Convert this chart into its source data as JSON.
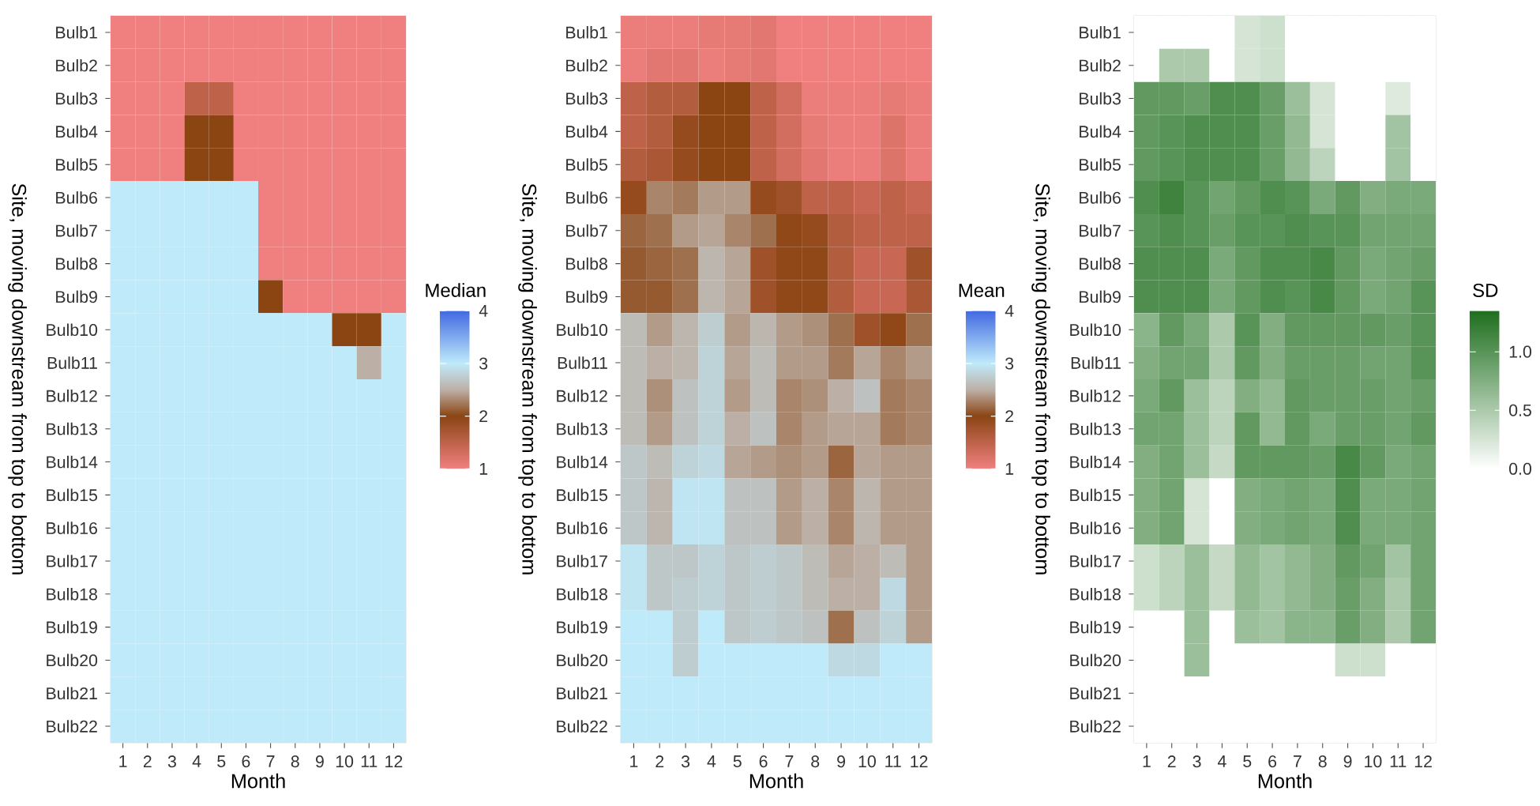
{
  "chart_data": [
    {
      "type": "heatmap",
      "xlabel": "Month",
      "ylabel": "Site, moving downstream from top to bottom",
      "clabel": "Median",
      "categories": [
        "1",
        "2",
        "3",
        "4",
        "5",
        "6",
        "7",
        "8",
        "9",
        "10",
        "11",
        "12"
      ],
      "y_categories": [
        "Bulb1",
        "Bulb2",
        "Bulb3",
        "Bulb4",
        "Bulb5",
        "Bulb6",
        "Bulb7",
        "Bulb8",
        "Bulb9",
        "Bulb10",
        "Bulb11",
        "Bulb12",
        "Bulb13",
        "Bulb14",
        "Bulb15",
        "Bulb16",
        "Bulb17",
        "Bulb18",
        "Bulb19",
        "Bulb20",
        "Bulb21",
        "Bulb22"
      ],
      "clim": [
        1,
        4
      ],
      "cticks": [
        1,
        2,
        3,
        4
      ],
      "cells": [
        [
          1,
          1,
          1,
          1,
          1,
          1,
          1,
          1,
          1,
          1,
          1,
          1
        ],
        [
          1,
          1,
          1,
          1,
          1,
          1,
          1,
          1,
          1,
          1,
          1,
          1
        ],
        [
          1,
          1,
          1,
          1.5,
          1.5,
          1,
          1,
          1,
          1,
          1,
          1,
          1
        ],
        [
          1,
          1,
          1,
          2,
          2,
          1,
          1,
          1,
          1,
          1,
          1,
          1
        ],
        [
          1,
          1,
          1,
          2,
          2,
          1,
          1,
          1,
          1,
          1,
          1,
          1
        ],
        [
          3,
          3,
          3,
          3,
          3,
          3,
          1,
          1,
          1,
          1,
          1,
          1
        ],
        [
          3,
          3,
          3,
          3,
          3,
          3,
          1,
          1,
          1,
          1,
          1,
          1
        ],
        [
          3,
          3,
          3,
          3,
          3,
          3,
          1,
          1,
          1,
          1,
          1,
          1
        ],
        [
          3,
          3,
          3,
          3,
          3,
          3,
          2,
          1,
          1,
          1,
          1,
          1
        ],
        [
          3,
          3,
          3,
          3,
          3,
          3,
          3,
          3,
          3,
          2,
          2,
          3
        ],
        [
          3,
          3,
          3,
          3,
          3,
          3,
          3,
          3,
          3,
          3,
          2.5,
          3
        ],
        [
          3,
          3,
          3,
          3,
          3,
          3,
          3,
          3,
          3,
          3,
          3,
          3
        ],
        [
          3,
          3,
          3,
          3,
          3,
          3,
          3,
          3,
          3,
          3,
          3,
          3
        ],
        [
          3,
          3,
          3,
          3,
          3,
          3,
          3,
          3,
          3,
          3,
          3,
          3
        ],
        [
          3,
          3,
          3,
          3,
          3,
          3,
          3,
          3,
          3,
          3,
          3,
          3
        ],
        [
          3,
          3,
          3,
          3,
          3,
          3,
          3,
          3,
          3,
          3,
          3,
          3
        ],
        [
          3,
          3,
          3,
          3,
          3,
          3,
          3,
          3,
          3,
          3,
          3,
          3
        ],
        [
          3,
          3,
          3,
          3,
          3,
          3,
          3,
          3,
          3,
          3,
          3,
          3
        ],
        [
          3,
          3,
          3,
          3,
          3,
          3,
          3,
          3,
          3,
          3,
          3,
          3
        ],
        [
          3,
          3,
          3,
          3,
          3,
          3,
          3,
          3,
          3,
          3,
          3,
          3
        ],
        [
          3,
          3,
          3,
          3,
          3,
          3,
          3,
          3,
          3,
          3,
          3,
          3
        ],
        [
          3,
          3,
          3,
          3,
          3,
          3,
          3,
          3,
          3,
          3,
          3,
          3
        ]
      ]
    },
    {
      "type": "heatmap",
      "xlabel": "Month",
      "ylabel": "Site, moving downstream from top to bottom",
      "clabel": "Mean",
      "categories": [
        "1",
        "2",
        "3",
        "4",
        "5",
        "6",
        "7",
        "8",
        "9",
        "10",
        "11",
        "12"
      ],
      "y_categories": [
        "Bulb1",
        "Bulb2",
        "Bulb3",
        "Bulb4",
        "Bulb5",
        "Bulb6",
        "Bulb7",
        "Bulb8",
        "Bulb9",
        "Bulb10",
        "Bulb11",
        "Bulb12",
        "Bulb13",
        "Bulb14",
        "Bulb15",
        "Bulb16",
        "Bulb17",
        "Bulb18",
        "Bulb19",
        "Bulb20",
        "Bulb21",
        "Bulb22"
      ],
      "clim": [
        1,
        4
      ],
      "cticks": [
        1,
        2,
        3,
        4
      ],
      "cells": [
        [
          1.05,
          1.05,
          1.05,
          1.1,
          1.1,
          1.15,
          1.0,
          1.0,
          1.0,
          1.0,
          1.0,
          1.0
        ],
        [
          1.05,
          1.15,
          1.15,
          1.05,
          1.1,
          1.15,
          1.0,
          1.0,
          1.0,
          1.0,
          1.0,
          1.0
        ],
        [
          1.5,
          1.6,
          1.6,
          2.0,
          2.0,
          1.5,
          1.3,
          1.05,
          1.05,
          1.05,
          1.1,
          1.05
        ],
        [
          1.5,
          1.6,
          1.9,
          2.0,
          2.0,
          1.5,
          1.3,
          1.1,
          1.05,
          1.05,
          1.2,
          1.05
        ],
        [
          1.6,
          1.7,
          1.9,
          2.0,
          2.0,
          1.5,
          1.3,
          1.15,
          1.05,
          1.05,
          1.2,
          1.05
        ],
        [
          1.9,
          2.3,
          2.25,
          2.4,
          2.4,
          1.9,
          1.8,
          1.5,
          1.5,
          1.4,
          1.5,
          1.4
        ],
        [
          2.15,
          2.2,
          2.4,
          2.45,
          2.3,
          2.2,
          1.95,
          1.9,
          1.6,
          1.5,
          1.5,
          1.5
        ],
        [
          2.1,
          2.15,
          2.2,
          2.55,
          2.45,
          1.8,
          1.95,
          1.95,
          1.6,
          1.4,
          1.4,
          1.8
        ],
        [
          2.1,
          2.1,
          2.2,
          2.55,
          2.45,
          1.8,
          1.95,
          1.95,
          1.6,
          1.4,
          1.4,
          1.7
        ],
        [
          2.6,
          2.4,
          2.55,
          2.75,
          2.4,
          2.55,
          2.4,
          2.35,
          2.2,
          1.8,
          1.95,
          2.2
        ],
        [
          2.6,
          2.5,
          2.55,
          2.8,
          2.45,
          2.6,
          2.4,
          2.4,
          2.25,
          2.45,
          2.3,
          2.4
        ],
        [
          2.6,
          2.35,
          2.65,
          2.8,
          2.4,
          2.6,
          2.3,
          2.35,
          2.5,
          2.65,
          2.25,
          2.3
        ],
        [
          2.6,
          2.4,
          2.65,
          2.8,
          2.5,
          2.65,
          2.3,
          2.4,
          2.45,
          2.45,
          2.25,
          2.3
        ],
        [
          2.7,
          2.6,
          2.8,
          2.85,
          2.45,
          2.4,
          2.35,
          2.4,
          2.15,
          2.45,
          2.4,
          2.4
        ],
        [
          2.7,
          2.55,
          2.95,
          2.95,
          2.65,
          2.65,
          2.4,
          2.5,
          2.3,
          2.55,
          2.4,
          2.4
        ],
        [
          2.7,
          2.55,
          2.95,
          2.95,
          2.65,
          2.65,
          2.4,
          2.5,
          2.3,
          2.55,
          2.4,
          2.4
        ],
        [
          2.95,
          2.7,
          2.7,
          2.8,
          2.7,
          2.75,
          2.7,
          2.6,
          2.45,
          2.5,
          2.6,
          2.4
        ],
        [
          2.95,
          2.7,
          2.75,
          2.8,
          2.7,
          2.75,
          2.7,
          2.6,
          2.5,
          2.5,
          2.85,
          2.4
        ],
        [
          3.0,
          3.0,
          2.75,
          3.0,
          2.7,
          2.75,
          2.7,
          2.65,
          2.2,
          2.65,
          2.8,
          2.4
        ],
        [
          3.0,
          3.0,
          2.75,
          3.0,
          3.0,
          3.0,
          3.0,
          3.0,
          2.85,
          2.85,
          3.0,
          3.0
        ],
        [
          3,
          3,
          3,
          3,
          3,
          3,
          3,
          3,
          3,
          3,
          3,
          3
        ],
        [
          3,
          3,
          3,
          3,
          3,
          3,
          3,
          3,
          3,
          3,
          3,
          3
        ]
      ]
    },
    {
      "type": "heatmap",
      "xlabel": "Month",
      "ylabel": "Site, moving downstream from top to bottom",
      "clabel": "SD",
      "categories": [
        "1",
        "2",
        "3",
        "4",
        "5",
        "6",
        "7",
        "8",
        "9",
        "10",
        "11",
        "12"
      ],
      "y_categories": [
        "Bulb1",
        "Bulb2",
        "Bulb3",
        "Bulb4",
        "Bulb5",
        "Bulb6",
        "Bulb7",
        "Bulb8",
        "Bulb9",
        "Bulb10",
        "Bulb11",
        "Bulb12",
        "Bulb13",
        "Bulb14",
        "Bulb15",
        "Bulb16",
        "Bulb17",
        "Bulb18",
        "Bulb19",
        "Bulb20",
        "Bulb21",
        "Bulb22"
      ],
      "clim": [
        0,
        1.35
      ],
      "cticks": [
        {
          "value": 0,
          "label": "0.0"
        },
        {
          "value": 0.5,
          "label": "0.5"
        },
        {
          "value": 1,
          "label": "1.0"
        }
      ],
      "cells": [
        [
          0,
          0,
          0,
          0,
          0.25,
          0.3,
          0,
          0,
          0,
          0,
          0,
          0
        ],
        [
          0,
          0.5,
          0.5,
          0,
          0.25,
          0.3,
          0,
          0,
          0,
          0,
          0,
          0
        ],
        [
          0.95,
          0.95,
          0.9,
          1.05,
          1.05,
          0.9,
          0.6,
          0.25,
          0,
          0,
          0.2,
          0
        ],
        [
          0.95,
          1.0,
          1.05,
          1.05,
          1.05,
          0.9,
          0.65,
          0.25,
          0,
          0,
          0.55,
          0
        ],
        [
          0.95,
          1.0,
          1.05,
          1.05,
          1.05,
          0.9,
          0.65,
          0.4,
          0,
          0,
          0.55,
          0
        ],
        [
          1.05,
          1.15,
          1.0,
          0.85,
          0.95,
          1.05,
          1.0,
          0.8,
          0.95,
          0.75,
          0.8,
          0.8
        ],
        [
          1.0,
          1.05,
          1.0,
          0.9,
          1.0,
          1.0,
          1.05,
          1.0,
          1.0,
          0.85,
          0.85,
          0.85
        ],
        [
          1.05,
          1.05,
          1.05,
          0.8,
          0.95,
          1.05,
          1.05,
          1.1,
          0.95,
          0.8,
          0.85,
          0.9
        ],
        [
          1.05,
          1.05,
          1.05,
          0.8,
          0.95,
          1.05,
          1.0,
          1.1,
          0.95,
          0.8,
          0.85,
          1.0
        ],
        [
          0.7,
          0.95,
          0.8,
          0.5,
          1.0,
          0.75,
          0.95,
          0.95,
          0.95,
          0.95,
          0.9,
          1.0
        ],
        [
          0.75,
          0.85,
          0.85,
          0.5,
          0.95,
          0.75,
          0.9,
          0.9,
          0.9,
          0.85,
          0.85,
          1.0
        ],
        [
          0.8,
          0.95,
          0.6,
          0.4,
          0.75,
          0.65,
          0.95,
          0.9,
          0.9,
          0.9,
          0.85,
          0.9
        ],
        [
          0.85,
          0.85,
          0.6,
          0.4,
          0.95,
          0.65,
          0.95,
          0.8,
          0.9,
          0.9,
          0.85,
          0.95
        ],
        [
          0.75,
          0.85,
          0.6,
          0.35,
          0.95,
          0.95,
          0.95,
          0.9,
          1.1,
          0.95,
          0.8,
          0.85
        ],
        [
          0.75,
          0.85,
          0.25,
          0,
          0.75,
          0.8,
          0.85,
          0.8,
          1.05,
          0.8,
          0.8,
          0.85
        ],
        [
          0.75,
          0.85,
          0.25,
          0,
          0.75,
          0.8,
          0.85,
          0.8,
          1.05,
          0.8,
          0.8,
          0.85
        ],
        [
          0.3,
          0.4,
          0.6,
          0.35,
          0.65,
          0.55,
          0.65,
          0.75,
          0.95,
          0.85,
          0.55,
          0.85
        ],
        [
          0.3,
          0.4,
          0.6,
          0.35,
          0.65,
          0.55,
          0.65,
          0.75,
          0.9,
          0.75,
          0.5,
          0.85
        ],
        [
          0,
          0,
          0.6,
          0,
          0.6,
          0.55,
          0.7,
          0.7,
          0.9,
          0.75,
          0.5,
          0.85
        ],
        [
          0,
          0,
          0.6,
          0,
          0,
          0,
          0,
          0,
          0.3,
          0.3,
          0,
          0
        ],
        [
          0,
          0,
          0,
          0,
          0,
          0,
          0,
          0,
          0,
          0,
          0,
          0
        ],
        [
          0,
          0,
          0,
          0,
          0,
          0,
          0,
          0,
          0,
          0,
          0,
          0
        ]
      ]
    }
  ]
}
